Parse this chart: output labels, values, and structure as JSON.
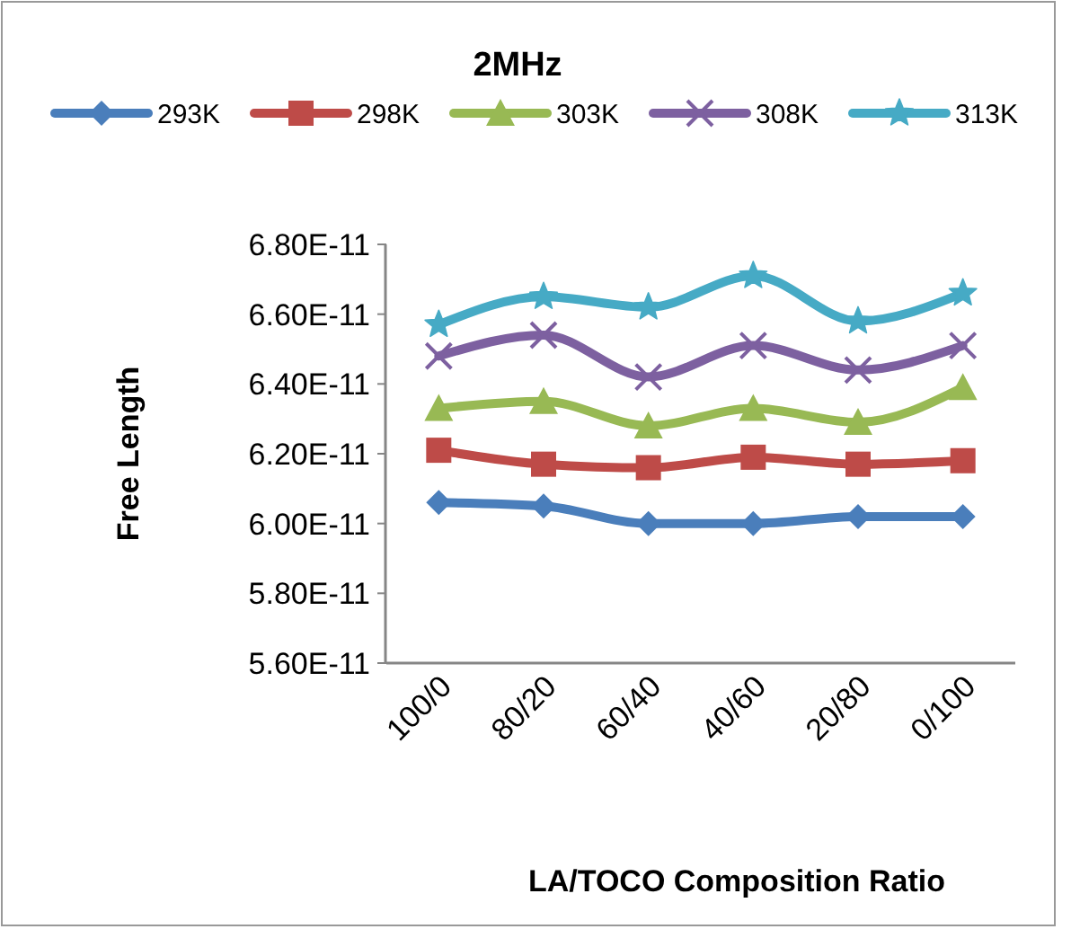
{
  "chart_data": {
    "type": "line",
    "title": "2MHz",
    "xlabel": "LA/TOCO Composition Ratio",
    "ylabel": "Free Length",
    "categories": [
      "100/0",
      "80/20",
      "60/40",
      "40/60",
      "20/80",
      "0/100"
    ],
    "series": [
      {
        "name": "293K",
        "color": "#4a7ebb",
        "marker": "diamond",
        "values": [
          6.06e-11,
          6.05e-11,
          6e-11,
          6e-11,
          6.02e-11,
          6.02e-11
        ]
      },
      {
        "name": "298K",
        "color": "#be4b48",
        "marker": "square",
        "values": [
          6.21e-11,
          6.17e-11,
          6.16e-11,
          6.19e-11,
          6.17e-11,
          6.18e-11
        ]
      },
      {
        "name": "303K",
        "color": "#98b954",
        "marker": "triangle",
        "values": [
          6.33e-11,
          6.35e-11,
          6.28e-11,
          6.33e-11,
          6.29e-11,
          6.39e-11
        ]
      },
      {
        "name": "308K",
        "color": "#7d60a0",
        "marker": "cross",
        "values": [
          6.48e-11,
          6.54e-11,
          6.42e-11,
          6.51e-11,
          6.44e-11,
          6.51e-11
        ]
      },
      {
        "name": "313K",
        "color": "#46aac5",
        "marker": "star",
        "values": [
          6.57e-11,
          6.65e-11,
          6.62e-11,
          6.71e-11,
          6.58e-11,
          6.66e-11
        ]
      }
    ],
    "ylim": [
      5.6e-11,
      6.8e-11
    ],
    "yticks": [
      {
        "value": 5.6e-11,
        "label": "5.60E-11"
      },
      {
        "value": 5.8e-11,
        "label": "5.80E-11"
      },
      {
        "value": 6e-11,
        "label": "6.00E-11"
      },
      {
        "value": 6.2e-11,
        "label": "6.20E-11"
      },
      {
        "value": 6.4e-11,
        "label": "6.40E-11"
      },
      {
        "value": 6.6e-11,
        "label": "6.60E-11"
      },
      {
        "value": 6.8e-11,
        "label": "6.80E-11"
      }
    ],
    "grid": false,
    "legend": "top"
  }
}
